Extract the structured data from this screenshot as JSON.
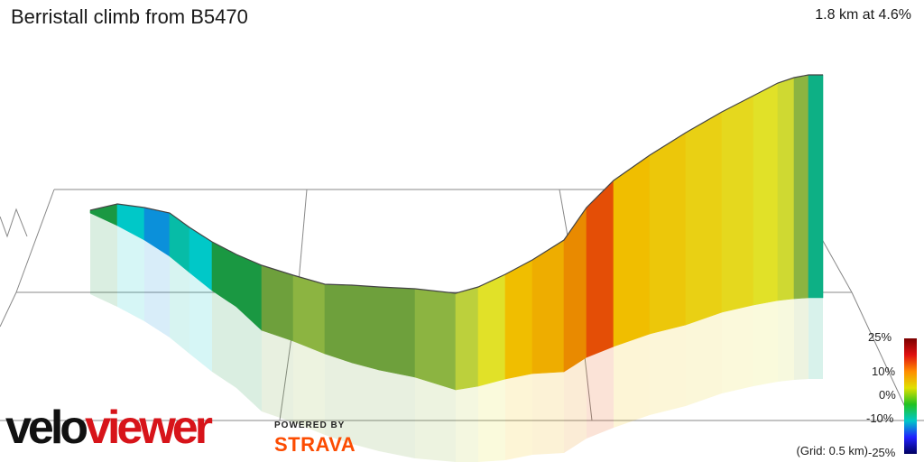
{
  "header": {
    "title": "Berristall climb from B5470",
    "summary": "1.8 km at 4.6%"
  },
  "footer": {
    "grid_note": "(Grid: 0.5 km)",
    "logo_part1": "velo",
    "logo_part2": "viewer",
    "powered_by": "POWERED BY",
    "strava": "STRAVA"
  },
  "colors": {
    "velo": "#111111",
    "viewer": "#d7141a",
    "strava": "#fc4c02",
    "outline": "#444444",
    "grid": "#888888"
  },
  "chart_data": {
    "type": "area",
    "subtype": "3d-elevation-profile",
    "x_unit": "km",
    "distance_km": 1.8,
    "average_gradient_pct": 4.6,
    "grid_spacing_km": 0.5,
    "x": [
      0.0,
      0.04,
      0.08,
      0.12,
      0.16,
      0.2,
      0.24,
      0.28,
      0.32,
      0.36,
      0.4,
      0.44,
      0.48,
      0.52,
      0.56,
      0.6,
      0.64,
      0.68,
      0.72,
      0.76,
      0.8,
      0.84,
      0.88,
      0.92,
      0.96,
      1.0,
      1.04,
      1.08,
      1.12,
      1.16,
      1.2,
      1.24,
      1.28,
      1.32,
      1.36,
      1.4,
      1.44,
      1.48,
      1.52,
      1.56,
      1.6,
      1.64,
      1.68,
      1.72,
      1.76,
      1.8
    ],
    "gradient_pct": [
      -2,
      -3,
      -6,
      -8,
      -3,
      -5,
      -4,
      -6,
      -2,
      -1,
      -2,
      -1,
      0,
      1,
      1,
      0,
      0,
      0,
      0,
      1,
      1,
      2,
      3,
      5,
      7,
      9,
      10,
      10,
      12,
      13,
      15,
      11,
      9,
      8,
      7,
      7,
      6,
      6,
      5,
      5,
      4,
      2,
      1,
      -4,
      -10,
      -12
    ],
    "color_scale": {
      "labels": [
        "25%",
        "10%",
        "0%",
        "-10%",
        "-25%"
      ],
      "values": [
        25,
        10,
        0,
        -10,
        -25
      ],
      "colors": [
        "#7a0000",
        "#e01010",
        "#ff8c00",
        "#e0e000",
        "#21c221",
        "#00c8c8",
        "#2020ff",
        "#000060"
      ]
    }
  }
}
